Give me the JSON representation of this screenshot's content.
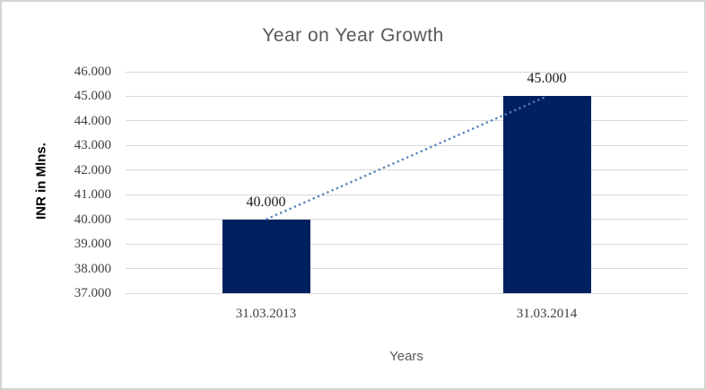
{
  "chart_data": {
    "type": "bar",
    "title": "Year on Year Growth",
    "xlabel": "Years",
    "ylabel": "INR in Mlns.",
    "categories": [
      "31.03.2013",
      "31.03.2014"
    ],
    "series": [
      {
        "name": "Year on Year Growth",
        "values": [
          40000,
          45000
        ],
        "data_labels": [
          "40.000",
          "45.000"
        ]
      }
    ],
    "ylim": [
      37000,
      46000
    ],
    "y_tick_step": 1000,
    "y_ticks": [
      {
        "value": 46000,
        "label": "46.000"
      },
      {
        "value": 45000,
        "label": "45.000"
      },
      {
        "value": 44000,
        "label": "44.000"
      },
      {
        "value": 43000,
        "label": "43.000"
      },
      {
        "value": 42000,
        "label": "42.000"
      },
      {
        "value": 41000,
        "label": "41.000"
      },
      {
        "value": 40000,
        "label": "40.000"
      },
      {
        "value": 39000,
        "label": "39.000"
      },
      {
        "value": 38000,
        "label": "38.000"
      },
      {
        "value": 37000,
        "label": "37.000"
      }
    ],
    "grid": true,
    "legend": "none",
    "trendline": {
      "type": "linear",
      "line_style": "dotted",
      "from": {
        "category_index": 0,
        "value": 40000
      },
      "to": {
        "category_index": 1,
        "value": 45000
      }
    }
  },
  "colors": {
    "background": "#ffffff",
    "frame_border": "#d3d3d3",
    "bar_fill": "#002060",
    "trendline": "#4f81bd",
    "gridline": "#d9d9d9",
    "title_text": "#595959",
    "axis_tick_text": "#404040",
    "data_label_text": "#1a1a1a",
    "x_axis_title_text": "#595959",
    "y_axis_title_text": "#000000"
  }
}
